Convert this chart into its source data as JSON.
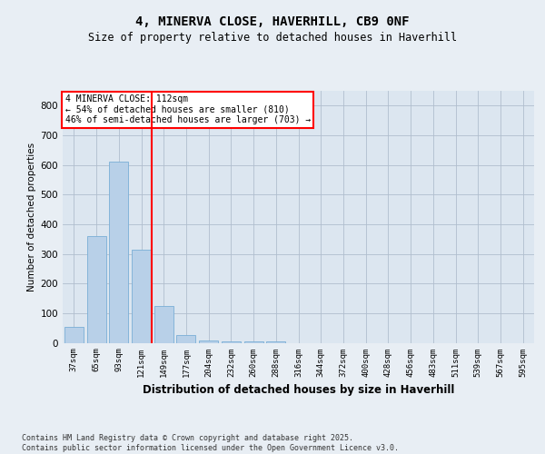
{
  "title": "4, MINERVA CLOSE, HAVERHILL, CB9 0NF",
  "subtitle": "Size of property relative to detached houses in Haverhill",
  "xlabel": "Distribution of detached houses by size in Haverhill",
  "ylabel": "Number of detached properties",
  "categories": [
    "37sqm",
    "65sqm",
    "93sqm",
    "121sqm",
    "149sqm",
    "177sqm",
    "204sqm",
    "232sqm",
    "260sqm",
    "288sqm",
    "316sqm",
    "344sqm",
    "372sqm",
    "400sqm",
    "428sqm",
    "456sqm",
    "483sqm",
    "511sqm",
    "539sqm",
    "567sqm",
    "595sqm"
  ],
  "values": [
    55,
    360,
    610,
    315,
    125,
    25,
    8,
    5,
    5,
    5,
    0,
    0,
    0,
    0,
    0,
    0,
    0,
    0,
    0,
    0,
    0
  ],
  "bar_color": "#b8d0e8",
  "bar_edge_color": "#7aaed6",
  "red_line_x": 3.45,
  "annotation_line1": "4 MINERVA CLOSE: 112sqm",
  "annotation_line2": "← 54% of detached houses are smaller (810)",
  "annotation_line3": "46% of semi-detached houses are larger (703) →",
  "ylim": [
    0,
    850
  ],
  "yticks": [
    0,
    100,
    200,
    300,
    400,
    500,
    600,
    700,
    800
  ],
  "footer": "Contains HM Land Registry data © Crown copyright and database right 2025.\nContains public sector information licensed under the Open Government Licence v3.0.",
  "bg_color": "#e8eef4",
  "plot_bg_color": "#dce6f0",
  "grid_color": "#b0bece"
}
